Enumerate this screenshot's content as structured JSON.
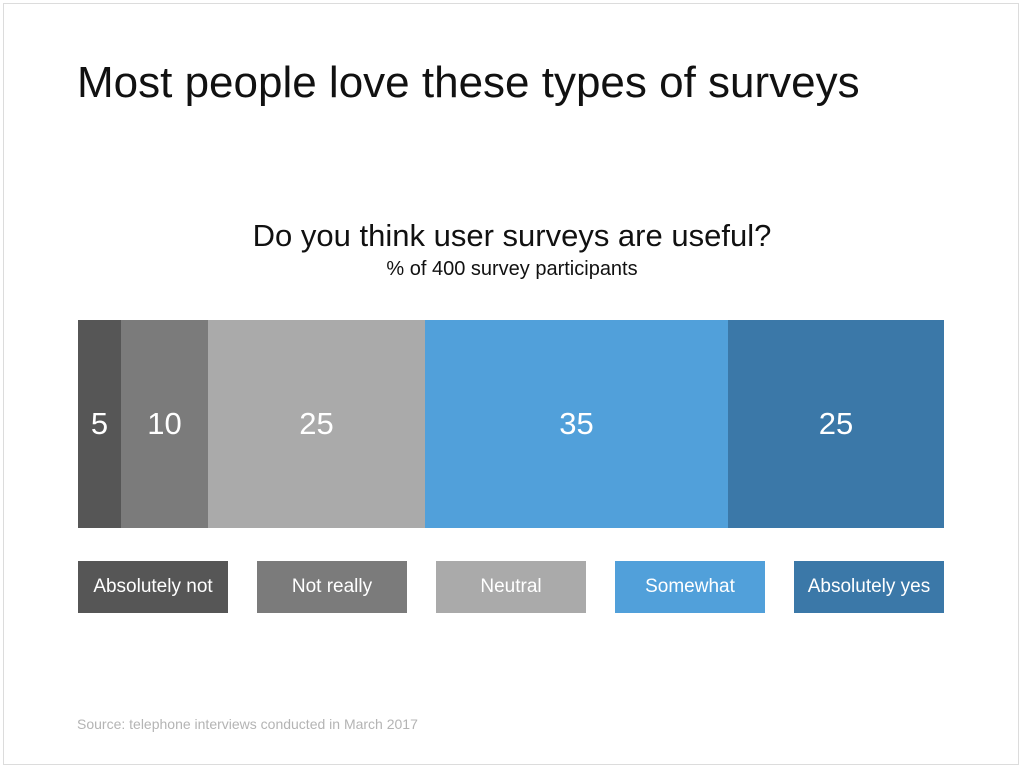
{
  "headline": "Most people love these types of surveys",
  "source": "Source: telephone interviews conducted in March 2017",
  "chart_data": {
    "type": "bar",
    "orientation": "horizontal-stacked-100",
    "title": "Do you think user surveys are useful?",
    "subtitle": "% of 400 survey participants",
    "categories": [
      "Absolutely not",
      "Not really",
      "Neutral",
      "Somewhat",
      "Absolutely yes"
    ],
    "values": [
      5,
      10,
      25,
      35,
      25
    ],
    "colors": [
      "#565656",
      "#7b7b7b",
      "#aaaaaa",
      "#51a0da",
      "#3b78a8"
    ],
    "legend": "bottom",
    "grid": false
  }
}
